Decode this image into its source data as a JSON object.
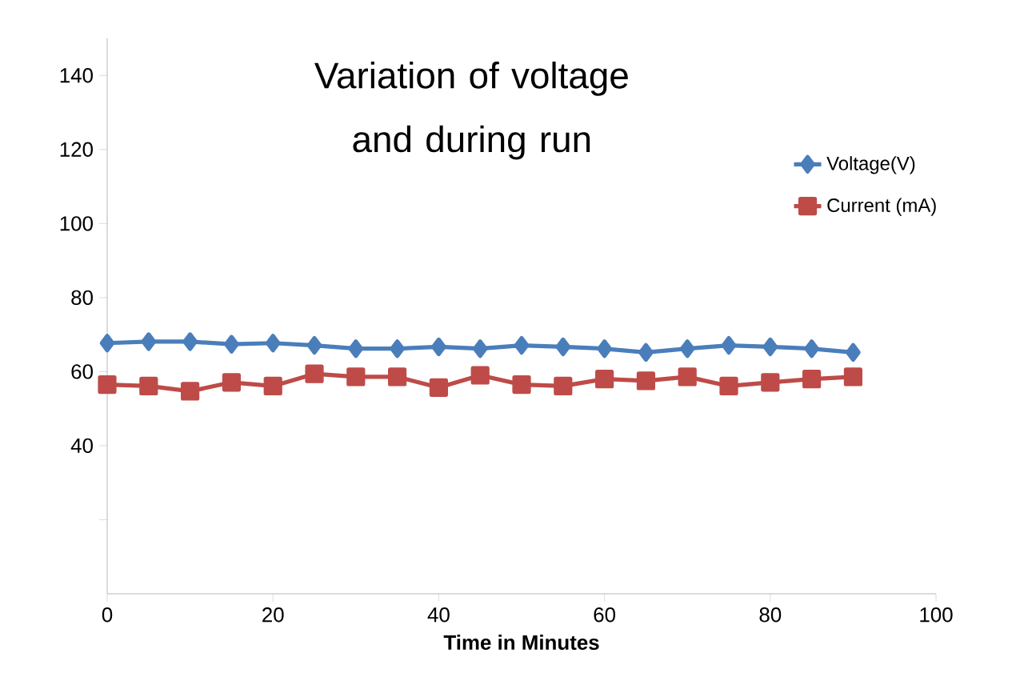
{
  "chart_data": {
    "type": "line",
    "title": "Variation of voltage and during run",
    "xlabel": "Time in Minutes",
    "x": [
      0,
      5,
      10,
      15,
      20,
      25,
      30,
      35,
      40,
      45,
      50,
      55,
      60,
      65,
      70,
      75,
      80,
      85,
      90
    ],
    "xlim": [
      0,
      100
    ],
    "xticks": [
      0,
      20,
      40,
      60,
      80,
      100
    ],
    "ylim": [
      0,
      150
    ],
    "yticks": [
      140,
      120,
      100,
      80,
      60,
      40,
      {
        "value": 20,
        "label": null
      }
    ],
    "legend": "right",
    "grid": false,
    "line_style": "solid",
    "series": [
      {
        "name": "Voltage(V)",
        "color": "#4a7ebb",
        "marker": "diamond",
        "values": [
          67.7,
          68.1,
          68.1,
          67.4,
          67.7,
          67.1,
          66.2,
          66.2,
          66.7,
          66.2,
          67.1,
          66.7,
          66.2,
          65.2,
          66.2,
          67.1,
          66.7,
          66.2,
          65.2
        ]
      },
      {
        "name": "Current (mA)",
        "color": "#be4b48",
        "marker": "square",
        "values": [
          56.5,
          56.1,
          54.7,
          57.1,
          56.1,
          59.4,
          58.6,
          58.6,
          55.7,
          59.0,
          56.5,
          56.1,
          58.0,
          57.5,
          58.6,
          56.1,
          57.1,
          58.0,
          58.6
        ]
      }
    ]
  }
}
